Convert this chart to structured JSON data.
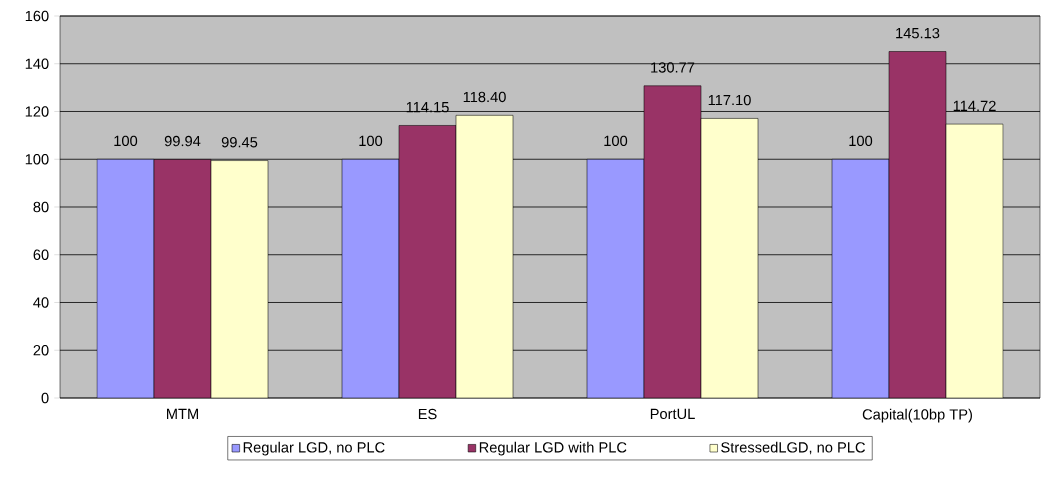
{
  "chart_data": {
    "type": "bar",
    "categories": [
      "MTM",
      "ES",
      "PortUL",
      "Capital(10bp TP)"
    ],
    "series": [
      {
        "name": "Regular LGD, no PLC",
        "color": "#9999ff",
        "values": [
          100,
          100,
          100,
          100
        ],
        "value_labels": [
          "100",
          "100",
          "100",
          "100"
        ]
      },
      {
        "name": "Regular LGD with PLC",
        "color": "#993366",
        "values": [
          99.94,
          114.15,
          130.77,
          145.13
        ],
        "value_labels": [
          "99.94",
          "114.15",
          "130.77",
          "145.13"
        ]
      },
      {
        "name": "StressedLGD, no PLC",
        "color": "#ffffcc",
        "values": [
          99.45,
          118.4,
          117.1,
          114.72
        ],
        "value_labels": [
          "99.45",
          "118.40",
          "117.10",
          "114.72"
        ]
      }
    ],
    "ylim": [
      0,
      160
    ],
    "yticks": [
      0,
      20,
      40,
      60,
      80,
      100,
      120,
      140,
      160
    ],
    "grid": "y",
    "legend": "bottom"
  }
}
